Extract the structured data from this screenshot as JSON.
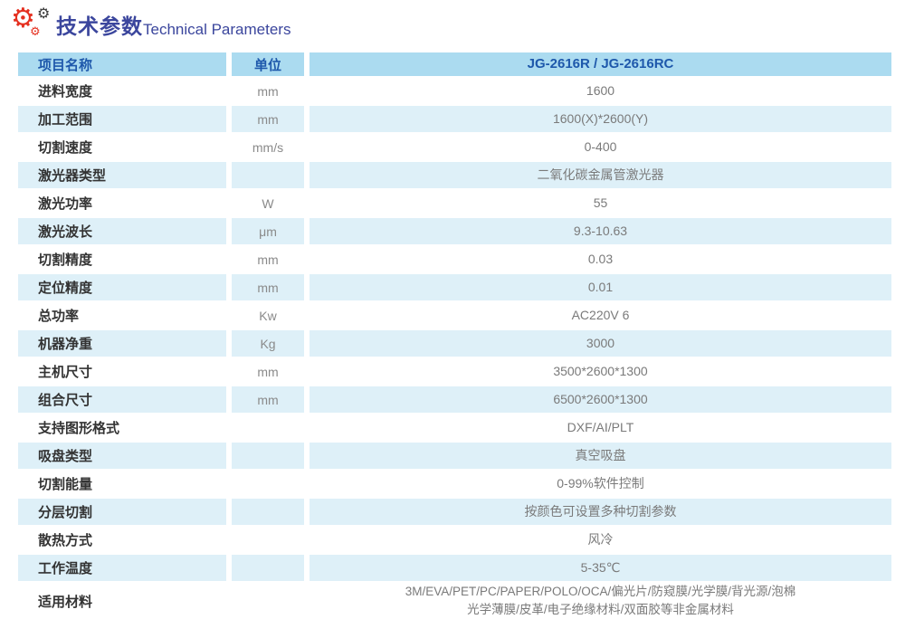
{
  "page": {
    "title_cn": "技术参数",
    "title_en": "Technical Parameters"
  },
  "icons": {
    "gear": "⚙"
  },
  "colors": {
    "header_bg": "#abdbf0",
    "header_text": "#1e58ab",
    "shade_row_bg": "#def0f8",
    "title_text": "#3b469d",
    "gear_red": "#e53020",
    "gear_dark": "#3a3a3a"
  },
  "table": {
    "headers": [
      "项目名称",
      "单位",
      "JG-2616R / JG-2616RC"
    ],
    "rows": [
      {
        "name": "进料宽度",
        "unit": "mm",
        "value": "1600"
      },
      {
        "name": "加工范围",
        "unit": "mm",
        "value": "1600(X)*2600(Y)"
      },
      {
        "name": "切割速度",
        "unit": "mm/s",
        "value": "0-400"
      },
      {
        "name": "激光器类型",
        "unit": "",
        "value": "二氧化碳金属管激光器"
      },
      {
        "name": "激光功率",
        "unit": "W",
        "value": "55"
      },
      {
        "name": "激光波长",
        "unit": "μm",
        "value": "9.3-10.63"
      },
      {
        "name": "切割精度",
        "unit": "mm",
        "value": "0.03"
      },
      {
        "name": "定位精度",
        "unit": "mm",
        "value": "0.01"
      },
      {
        "name": "总功率",
        "unit": "Kw",
        "value": "AC220V 6"
      },
      {
        "name": "机器净重",
        "unit": "Kg",
        "value": "3000"
      },
      {
        "name": "主机尺寸",
        "unit": "mm",
        "value": "3500*2600*1300"
      },
      {
        "name": "组合尺寸",
        "unit": "mm",
        "value": "6500*2600*1300"
      },
      {
        "name": "支持图形格式",
        "unit": "",
        "value": "DXF/AI/PLT"
      },
      {
        "name": "吸盘类型",
        "unit": "",
        "value": "真空吸盘"
      },
      {
        "name": "切割能量",
        "unit": "",
        "value": "0-99%软件控制"
      },
      {
        "name": "分层切割",
        "unit": "",
        "value": "按颜色可设置多种切割参数"
      },
      {
        "name": "散热方式",
        "unit": "",
        "value": "风冷"
      },
      {
        "name": "工作温度",
        "unit": "",
        "value": "5-35℃"
      },
      {
        "name": "适用材料",
        "unit": "",
        "value": "3M/EVA/PET/PC/PAPER/POLO/OCA/偏光片/防窥膜/光学膜/背光源/泡棉\n光学薄膜/皮革/电子绝缘材料/双面胶等非金属材料"
      }
    ]
  }
}
